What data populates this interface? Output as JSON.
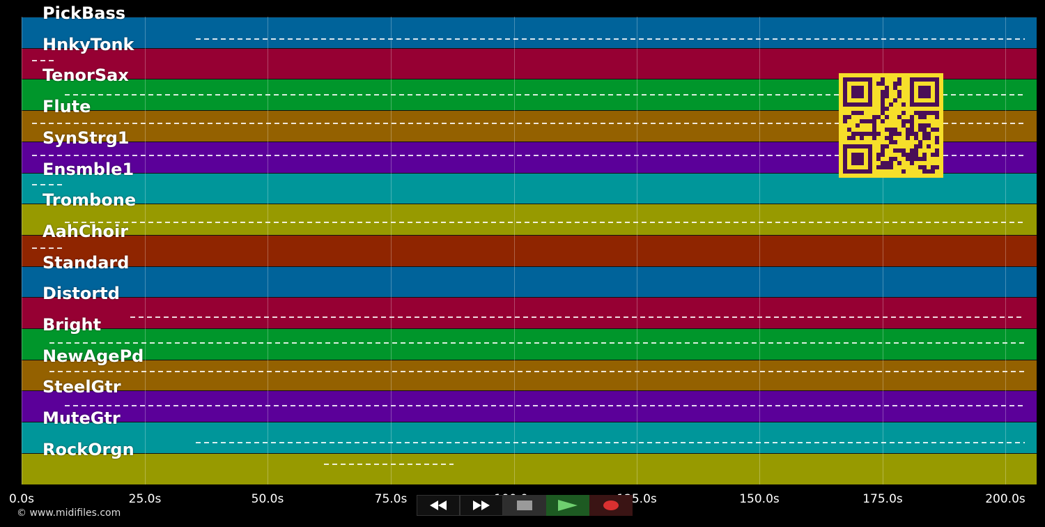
{
  "tracks": [
    {
      "label": "PickBass",
      "color": "#00639a"
    },
    {
      "label": "HnkyTonk",
      "color": "#960033"
    },
    {
      "label": "TenorSax",
      "color": "#00962b"
    },
    {
      "label": "Flute",
      "color": "#946100"
    },
    {
      "label": "SynStrg1",
      "color": "#5b0099"
    },
    {
      "label": "Ensmble1",
      "color": "#00969a"
    },
    {
      "label": "Trombone",
      "color": "#979a00"
    },
    {
      "label": "AahChoir",
      "color": "#8f2500"
    },
    {
      "label": "Standard",
      "color": "#00639a"
    },
    {
      "label": "Distortd",
      "color": "#960033"
    },
    {
      "label": "Bright",
      "color": "#00962b"
    },
    {
      "label": "NewAgePd",
      "color": "#946100"
    },
    {
      "label": "SteelGtr",
      "color": "#5b0099"
    },
    {
      "label": "MuteGtr",
      "color": "#00969a"
    },
    {
      "label": "RockOrgn",
      "color": "#979a00"
    }
  ],
  "timeline": {
    "ticks": [
      "0.0s",
      "25.0s",
      "50.0s",
      "75.0s",
      "100.0s",
      "125.0s",
      "150.0s",
      "175.0s",
      "200.0s"
    ]
  },
  "footer": {
    "copyright": "© www.midifiles.com"
  },
  "controls": [
    {
      "name": "rewind-button",
      "icon": "rewind-icon"
    },
    {
      "name": "fast-forward-button",
      "icon": "fast-forward-icon"
    },
    {
      "name": "stop-button",
      "icon": "stop-icon"
    },
    {
      "name": "play-button",
      "icon": "play-icon"
    },
    {
      "name": "record-button",
      "icon": "record-icon"
    }
  ]
}
